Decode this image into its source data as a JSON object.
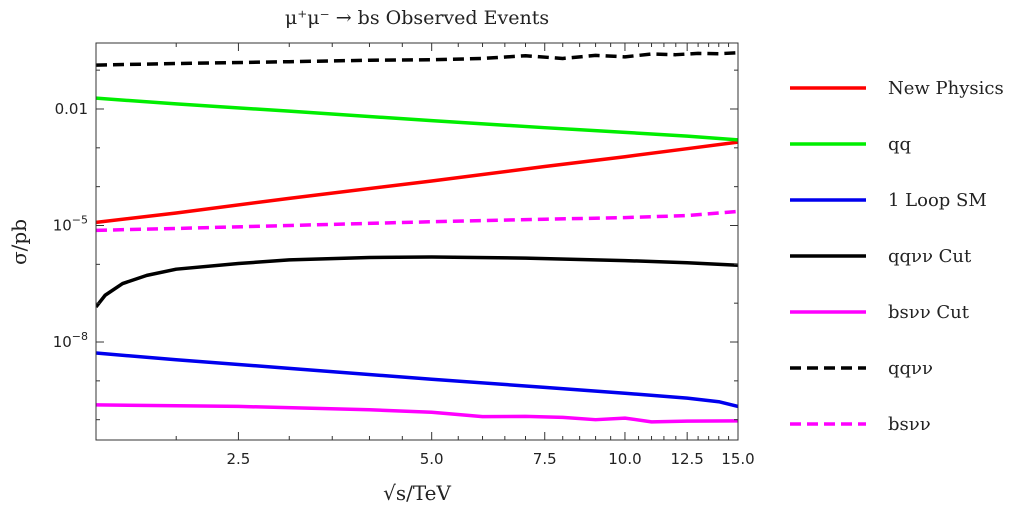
{
  "chart_data": {
    "type": "line",
    "title": "μ⁺μ⁻ → bs Observed Events",
    "xlabel": "√s/TeV",
    "ylabel": "σ/pb",
    "x_scale": "log",
    "y_scale": "log",
    "xlim": [
      1.5,
      15.0
    ],
    "ylim": [
      3e-11,
      0.5
    ],
    "x_ticks": [
      {
        "value": 2.5,
        "label": "2.5"
      },
      {
        "value": 5.0,
        "label": "5.0"
      },
      {
        "value": 7.5,
        "label": "7.5"
      },
      {
        "value": 10.0,
        "label": "10.0"
      },
      {
        "value": 12.5,
        "label": "12.5"
      },
      {
        "value": 15.0,
        "label": "15.0"
      }
    ],
    "y_ticks": [
      {
        "value": 0.01,
        "label": "0.01",
        "base": "",
        "exp": ""
      },
      {
        "value": 1e-05,
        "label": "",
        "base": "10",
        "exp": "−5"
      },
      {
        "value": 1e-08,
        "label": "",
        "base": "10",
        "exp": "−8"
      }
    ],
    "grid": false,
    "legend_position": "right",
    "series": [
      {
        "name": "New Physics",
        "color": "#ff0000",
        "dash": "solid",
        "x": [
          1.5,
          2.0,
          3.0,
          5.0,
          7.5,
          10.0,
          12.5,
          15.0
        ],
        "y": [
          1.2e-05,
          2.1e-05,
          5e-05,
          0.00014,
          0.00033,
          0.00059,
          0.00095,
          0.0014
        ]
      },
      {
        "name": "qq",
        "color": "#00ee00",
        "dash": "solid",
        "x": [
          1.5,
          2.0,
          3.0,
          5.0,
          7.5,
          10.0,
          12.5,
          15.0
        ],
        "y": [
          0.019,
          0.0135,
          0.0088,
          0.005,
          0.0033,
          0.0025,
          0.002,
          0.0016
        ]
      },
      {
        "name": "1 Loop SM",
        "color": "#0000ee",
        "dash": "solid",
        "x": [
          1.5,
          2.0,
          3.0,
          5.0,
          7.5,
          10.0,
          12.5,
          14.0,
          15.0
        ],
        "y": [
          5.2e-09,
          3.5e-09,
          2.1e-09,
          1.1e-09,
          6.8e-10,
          4.8e-10,
          3.6e-10,
          2.9e-10,
          2.2e-10
        ]
      },
      {
        "name": "qqνν Cut",
        "color": "#000000",
        "dash": "solid",
        "x": [
          1.5,
          1.55,
          1.65,
          1.8,
          2.0,
          2.5,
          3.0,
          4.0,
          5.0,
          7.0,
          10.0,
          12.5,
          15.0
        ],
        "y": [
          8e-08,
          1.6e-07,
          3.2e-07,
          5.2e-07,
          7.5e-07,
          1.05e-06,
          1.3e-06,
          1.5e-06,
          1.55e-06,
          1.45e-06,
          1.25e-06,
          1.1e-06,
          9.5e-07
        ]
      },
      {
        "name": "bsνν Cut",
        "color": "#ff00ff",
        "dash": "solid",
        "x": [
          1.5,
          2.5,
          4.0,
          5.0,
          6.0,
          7.0,
          8.0,
          9.0,
          10.0,
          11.0,
          12.5,
          15.0
        ],
        "y": [
          2.4e-10,
          2.2e-10,
          1.8e-10,
          1.55e-10,
          1.2e-10,
          1.22e-10,
          1.15e-10,
          1e-10,
          1.1e-10,
          8.8e-11,
          9.2e-11,
          9.3e-11
        ]
      },
      {
        "name": "qqνν",
        "color": "#000000",
        "dash": "dashed",
        "x": [
          1.5,
          2.0,
          3.0,
          4.0,
          5.0,
          6.0,
          7.0,
          8.0,
          9.0,
          10.0,
          11.0,
          12.0,
          13.0,
          14.0,
          15.0
        ],
        "y": [
          0.135,
          0.148,
          0.165,
          0.18,
          0.185,
          0.2,
          0.235,
          0.2,
          0.24,
          0.22,
          0.26,
          0.25,
          0.27,
          0.265,
          0.28
        ]
      },
      {
        "name": "bsνν",
        "color": "#ff00ff",
        "dash": "dashed",
        "x": [
          1.5,
          2.0,
          3.0,
          5.0,
          7.5,
          10.0,
          12.5,
          15.0
        ],
        "y": [
          7.5e-06,
          8.4e-06,
          1e-05,
          1.25e-05,
          1.45e-05,
          1.6e-05,
          1.8e-05,
          2.3e-05
        ]
      }
    ]
  }
}
